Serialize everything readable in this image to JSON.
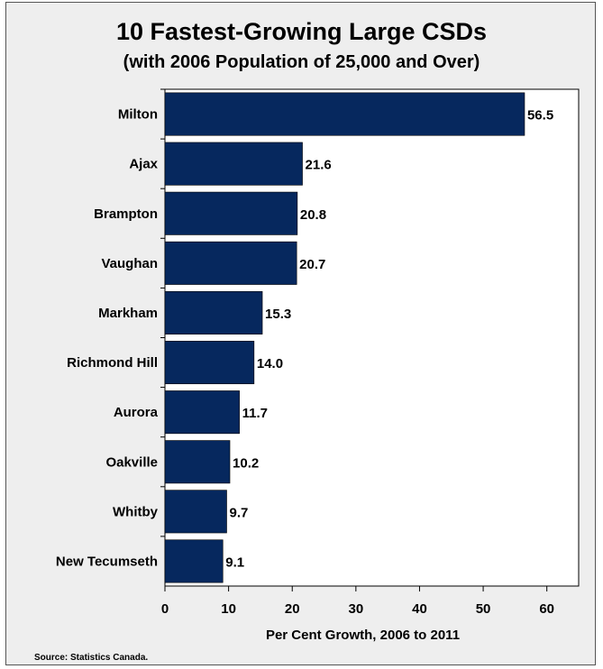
{
  "chart_data": {
    "type": "bar",
    "orientation": "horizontal",
    "title": "10 Fastest-Growing Large CSDs",
    "subtitle": "(with 2006 Population of 25,000 and Over)",
    "categories": [
      "Milton",
      "Ajax",
      "Brampton",
      "Vaughan",
      "Markham",
      "Richmond Hill",
      "Aurora",
      "Oakville",
      "Whitby",
      "New Tecumseth"
    ],
    "values": [
      56.5,
      21.6,
      20.8,
      20.7,
      15.3,
      14.0,
      11.7,
      10.2,
      9.7,
      9.1
    ],
    "value_labels": [
      "56.5",
      "21.6",
      "20.8",
      "20.7",
      "15.3",
      "14.0",
      "11.7",
      "10.2",
      "9.7",
      "9.1"
    ],
    "xlabel": "Per Cent Growth, 2006 to 2011",
    "ylabel": "",
    "xlim": [
      0,
      65
    ],
    "xticks": [
      0,
      10,
      20,
      30,
      40,
      50,
      60
    ],
    "grid": false,
    "bar_color": "#06285e",
    "plot_background": "#ffffff"
  },
  "source": "Source: Statistics Canada."
}
